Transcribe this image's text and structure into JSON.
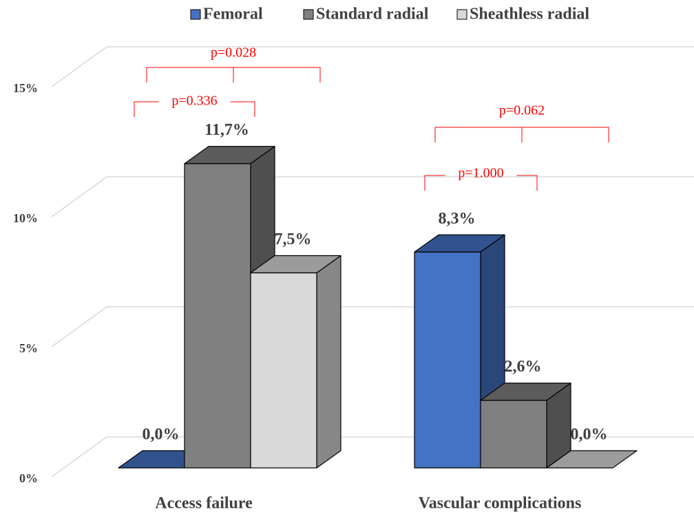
{
  "chart_data": {
    "type": "bar3d",
    "categories": [
      "Access failure",
      "Vascular complications"
    ],
    "series": [
      {
        "name": "Femoral",
        "color": "#4472c4",
        "values": [
          0,
          8.3
        ],
        "value_labels": [
          "0,0%",
          "8,3%"
        ]
      },
      {
        "name": "Standard radial",
        "color": "#808080",
        "values": [
          11.7,
          2.6
        ],
        "value_labels": [
          "11,7%",
          "2,6%"
        ]
      },
      {
        "name": "Sheathless radial",
        "color": "#d9d9d9",
        "values": [
          7.5,
          0
        ],
        "value_labels": [
          "7,5%",
          "0,0%"
        ]
      }
    ],
    "ylim": [
      0,
      15
    ],
    "yticks": [
      {
        "value": 0,
        "label": "0%"
      },
      {
        "value": 5,
        "label": "5%"
      },
      {
        "value": 10,
        "label": "10%"
      },
      {
        "value": 15,
        "label": "15%"
      }
    ],
    "grid": true,
    "legend": "top",
    "annotations": [
      {
        "text": "p=0.336"
      },
      {
        "text": "p=0.028"
      },
      {
        "text": "p=1.000"
      },
      {
        "text": "p=0.062"
      }
    ]
  }
}
